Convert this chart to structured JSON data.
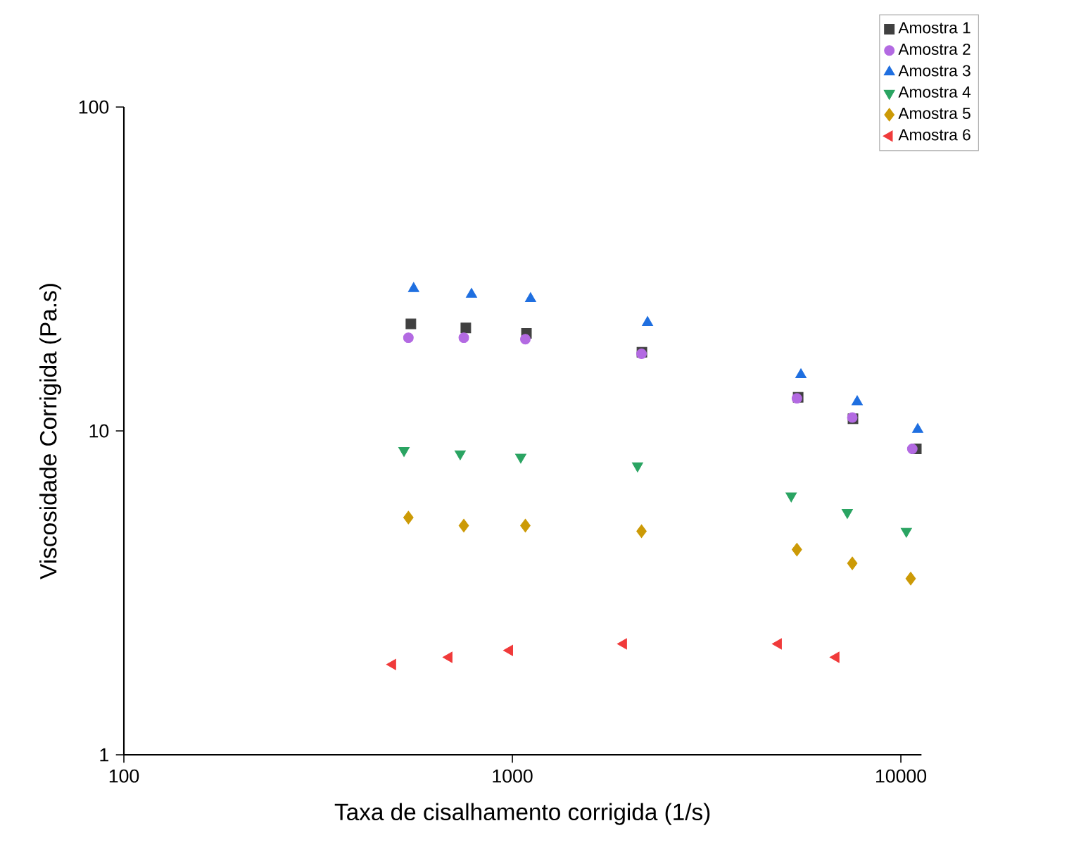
{
  "chart_data": {
    "type": "scatter",
    "xlabel": "Taxa de cisalhamento corrigida (1/s)",
    "ylabel": "Viscosidade Corrigida (Pa.s)",
    "log": "xy",
    "xlim": [
      100,
      11300
    ],
    "ylim": [
      1,
      100
    ],
    "xticks": [
      100,
      1000,
      10000
    ],
    "yticks": [
      1,
      10,
      100
    ],
    "grid": false,
    "legend": "top right",
    "series": [
      {
        "name": "Amostra 1",
        "color": "#404040",
        "marker": "square",
        "x": [
          548,
          759,
          1087,
          2155,
          5440,
          7530,
          10960
        ],
        "values": [
          21.4,
          20.8,
          20.0,
          17.5,
          12.7,
          10.9,
          8.8
        ]
      },
      {
        "name": "Amostra 2",
        "color": "#b36ae2",
        "marker": "circle",
        "x": [
          540,
          750,
          1080,
          2150,
          5400,
          7500,
          10700
        ],
        "values": [
          19.4,
          19.4,
          19.2,
          17.3,
          12.6,
          11.0,
          8.8
        ]
      },
      {
        "name": "Amostra 3",
        "color": "#1f6fe0",
        "marker": "triangle",
        "x": [
          557,
          785,
          1114,
          2228,
          5530,
          7720,
          11050
        ],
        "values": [
          27.5,
          26.4,
          25.6,
          21.6,
          14.9,
          12.3,
          10.1
        ]
      },
      {
        "name": "Amostra 4",
        "color": "#2aa462",
        "marker": "triangle-down",
        "x": [
          526,
          734,
          1051,
          2100,
          5220,
          7280,
          10330
        ],
        "values": [
          8.7,
          8.5,
          8.3,
          7.8,
          6.3,
          5.6,
          4.9
        ]
      },
      {
        "name": "Amostra 5",
        "color": "#cc9a06",
        "marker": "diamond",
        "x": [
          540,
          750,
          1080,
          2150,
          5400,
          7500,
          10600
        ],
        "values": [
          5.4,
          5.1,
          5.1,
          4.9,
          4.3,
          3.9,
          3.5
        ]
      },
      {
        "name": "Amostra 6",
        "color": "#f03a3a",
        "marker": "triangle-left",
        "x": [
          492,
          687,
          984,
          1933,
          4840,
          6810
        ],
        "values": [
          1.9,
          2.0,
          2.1,
          2.2,
          2.2,
          2.0
        ]
      }
    ]
  }
}
